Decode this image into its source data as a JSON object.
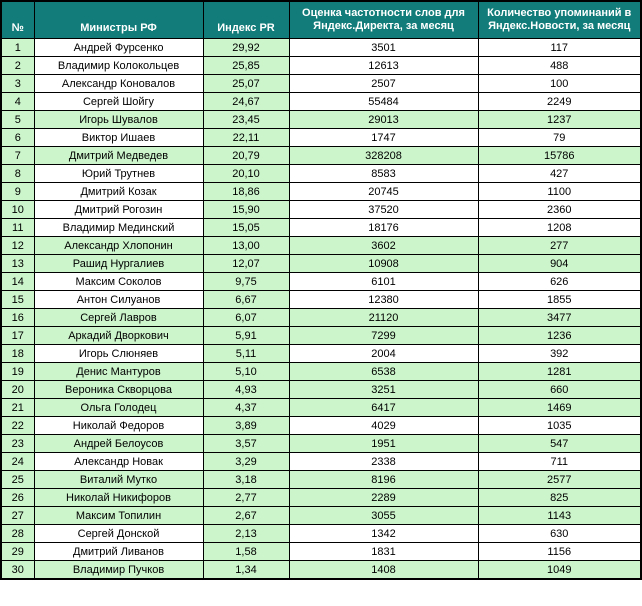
{
  "colors": {
    "header_background": "#117c79",
    "header_text": "#ffffff",
    "highlight_green": "#ccf5cb",
    "border": "#000000"
  },
  "table": {
    "headers": [
      "№",
      "Министры РФ",
      "Индекс PR",
      "Оценка частотности слов для Яндекс.Директа, за месяц",
      "Количество упоминаний в Яндекс.Новости, за месяц"
    ],
    "rows": [
      {
        "num": "1",
        "name": "Андрей Фурсенко",
        "pr": "29,92",
        "freq": "3501",
        "news": "117",
        "highlighted": false
      },
      {
        "num": "2",
        "name": "Владимир Колокольцев",
        "pr": "25,85",
        "freq": "12613",
        "news": "488",
        "highlighted": false
      },
      {
        "num": "3",
        "name": "Александр Коновалов",
        "pr": "25,07",
        "freq": "2507",
        "news": "100",
        "highlighted": false
      },
      {
        "num": "4",
        "name": "Сергей Шойгу",
        "pr": "24,67",
        "freq": "55484",
        "news": "2249",
        "highlighted": false
      },
      {
        "num": "5",
        "name": "Игорь Шувалов",
        "pr": "23,45",
        "freq": "29013",
        "news": "1237",
        "highlighted": true
      },
      {
        "num": "6",
        "name": "Виктор Ишаев",
        "pr": "22,11",
        "freq": "1747",
        "news": "79",
        "highlighted": false
      },
      {
        "num": "7",
        "name": "Дмитрий Медведев",
        "pr": "20,79",
        "freq": "328208",
        "news": "15786",
        "highlighted": true
      },
      {
        "num": "8",
        "name": "Юрий Трутнев",
        "pr": "20,10",
        "freq": "8583",
        "news": "427",
        "highlighted": false
      },
      {
        "num": "9",
        "name": "Дмитрий Козак",
        "pr": "18,86",
        "freq": "20745",
        "news": "1100",
        "highlighted": false
      },
      {
        "num": "10",
        "name": "Дмитрий Рогозин",
        "pr": "15,90",
        "freq": "37520",
        "news": "2360",
        "highlighted": false
      },
      {
        "num": "11",
        "name": "Владимир Мединский",
        "pr": "15,05",
        "freq": "18176",
        "news": "1208",
        "highlighted": false
      },
      {
        "num": "12",
        "name": "Александр Хлопонин",
        "pr": "13,00",
        "freq": "3602",
        "news": "277",
        "highlighted": true
      },
      {
        "num": "13",
        "name": "Рашид Нургалиев",
        "pr": "12,07",
        "freq": "10908",
        "news": "904",
        "highlighted": true
      },
      {
        "num": "14",
        "name": "Максим Соколов",
        "pr": "9,75",
        "freq": "6101",
        "news": "626",
        "highlighted": false
      },
      {
        "num": "15",
        "name": "Антон Силуанов",
        "pr": "6,67",
        "freq": "12380",
        "news": "1855",
        "highlighted": false
      },
      {
        "num": "16",
        "name": "Сергей Лавров",
        "pr": "6,07",
        "freq": "21120",
        "news": "3477",
        "highlighted": true
      },
      {
        "num": "17",
        "name": "Аркадий Дворкович",
        "pr": "5,91",
        "freq": "7299",
        "news": "1236",
        "highlighted": true
      },
      {
        "num": "18",
        "name": "Игорь Слюняев",
        "pr": "5,11",
        "freq": "2004",
        "news": "392",
        "highlighted": false
      },
      {
        "num": "19",
        "name": "Денис Мантуров",
        "pr": "5,10",
        "freq": "6538",
        "news": "1281",
        "highlighted": true
      },
      {
        "num": "20",
        "name": "Вероника Скворцова",
        "pr": "4,93",
        "freq": "3251",
        "news": "660",
        "highlighted": true
      },
      {
        "num": "21",
        "name": "Ольга Голодец",
        "pr": "4,37",
        "freq": "6417",
        "news": "1469",
        "highlighted": true
      },
      {
        "num": "22",
        "name": "Николай Федоров",
        "pr": "3,89",
        "freq": "4029",
        "news": "1035",
        "highlighted": false
      },
      {
        "num": "23",
        "name": "Андрей Белоусов",
        "pr": "3,57",
        "freq": "1951",
        "news": "547",
        "highlighted": true
      },
      {
        "num": "24",
        "name": "Александр Новак",
        "pr": "3,29",
        "freq": "2338",
        "news": "711",
        "highlighted": false
      },
      {
        "num": "25",
        "name": "Виталий Мутко",
        "pr": "3,18",
        "freq": "8196",
        "news": "2577",
        "highlighted": true
      },
      {
        "num": "26",
        "name": "Николай Никифоров",
        "pr": "2,77",
        "freq": "2289",
        "news": "825",
        "highlighted": true
      },
      {
        "num": "27",
        "name": "Максим Топилин",
        "pr": "2,67",
        "freq": "3055",
        "news": "1143",
        "highlighted": true
      },
      {
        "num": "28",
        "name": "Сергей Донской",
        "pr": "2,13",
        "freq": "1342",
        "news": "630",
        "highlighted": false
      },
      {
        "num": "29",
        "name": "Дмитрий Ливанов",
        "pr": "1,58",
        "freq": "1831",
        "news": "1156",
        "highlighted": false
      },
      {
        "num": "30",
        "name": "Владимир Пучков",
        "pr": "1,34",
        "freq": "1408",
        "news": "1049",
        "highlighted": true
      }
    ]
  }
}
